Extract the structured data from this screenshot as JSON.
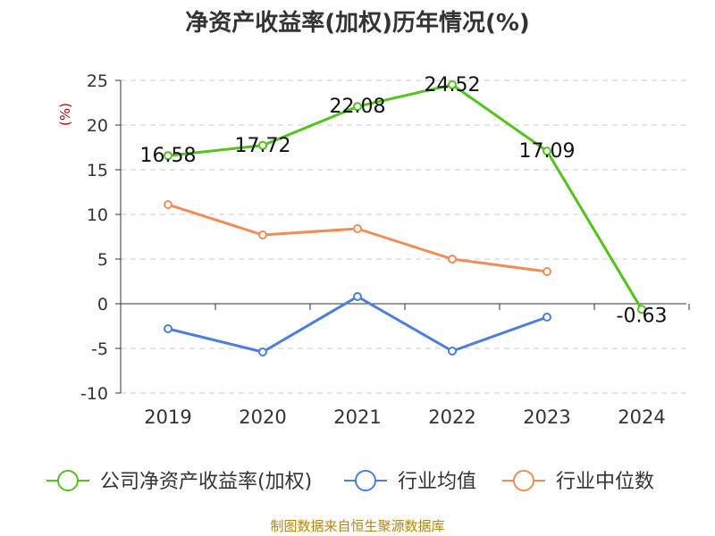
{
  "chart_data": {
    "type": "line",
    "title": "净资产收益率(加权)历年情况(%)",
    "ylabel": "(%)",
    "xlabel": "",
    "categories": [
      "2019",
      "2020",
      "2021",
      "2022",
      "2023",
      "2024"
    ],
    "ylim": [
      -10,
      25
    ],
    "yticks": [
      25,
      20,
      15,
      10,
      5,
      0,
      -5,
      -10
    ],
    "grid": true,
    "legend_position": "bottom",
    "series": [
      {
        "name": "公司净资产收益率(加权)",
        "color": "#52c41a",
        "values": [
          16.58,
          17.72,
          22.08,
          24.52,
          17.09,
          -0.63
        ],
        "labels": [
          "16.58",
          "17.72",
          "22.08",
          "24.52",
          "17.09",
          "-0.63"
        ]
      },
      {
        "name": "行业均值",
        "color": "#4a7fdc",
        "values": [
          -2.8,
          -5.4,
          0.8,
          -5.3,
          -1.5,
          null
        ]
      },
      {
        "name": "行业中位数",
        "color": "#f28c55",
        "values": [
          11.1,
          7.7,
          8.4,
          5.0,
          3.6,
          null
        ]
      }
    ]
  },
  "source": "制图数据来自恒生聚源数据库"
}
